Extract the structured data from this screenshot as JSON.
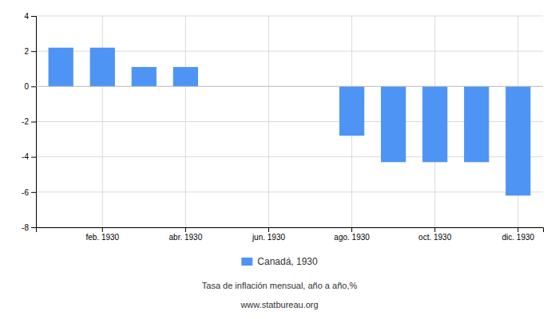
{
  "chart_data": {
    "type": "bar",
    "subtitle": "Tasa de inflación mensual, año a año,%",
    "annotations": [
      "www.statbureau.org"
    ],
    "categories": [
      null,
      "feb. 1930",
      null,
      "abr. 1930",
      null,
      "jun. 1930",
      null,
      "ago. 1930",
      null,
      "oct. 1930",
      null,
      "dic. 1930"
    ],
    "series": [
      {
        "name": "Canadá, 1930",
        "color": "#4d94f5",
        "values": [
          2.2,
          2.2,
          1.1,
          1.1,
          null,
          null,
          null,
          -2.8,
          -4.3,
          -4.3,
          -4.3,
          -6.2
        ]
      }
    ],
    "ylim": [
      -8,
      4
    ],
    "yticks": [
      -8,
      -6,
      -4,
      -2,
      0,
      2,
      4
    ],
    "grid": true,
    "legend": "bottom"
  }
}
